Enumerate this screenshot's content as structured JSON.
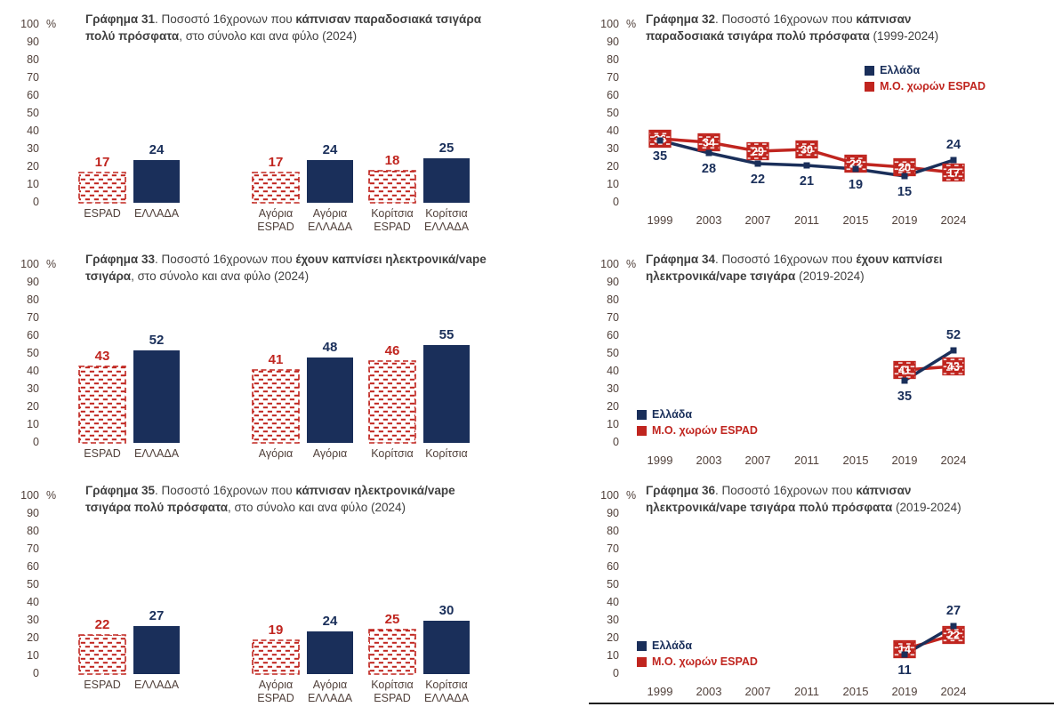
{
  "palette": {
    "navy": "#1a2f5a",
    "red": "#c0251f",
    "axis_label": "#51413b",
    "title_text": "#404040"
  },
  "axis": {
    "unit": "%",
    "y_ticks": [
      0,
      10,
      20,
      30,
      40,
      50,
      60,
      70,
      80,
      90,
      100
    ],
    "y_max": 100
  },
  "chart_data": [
    {
      "id": "31",
      "type": "bar",
      "title_segments": [
        {
          "text": "Γράφημα 31",
          "bold": true
        },
        {
          "text": ". Ποσοστό 16χρονων που ",
          "bold": false
        },
        {
          "text": "κάπνισαν παραδοσιακά τσιγάρα πολύ πρόσφατα",
          "bold": true
        },
        {
          "text": ", στο σύνολο και ανα φύλο (2024)",
          "bold": false
        }
      ],
      "categories": [
        [
          "ESPAD"
        ],
        [
          "ΕΛΛΑΔΑ"
        ],
        [
          "Αγόρια",
          "ESPAD"
        ],
        [
          "Αγόρια",
          "ΕΛΛΑΔΑ"
        ],
        [
          "Κορίτσια",
          "ESPAD"
        ],
        [
          "Κορίτσια",
          "ΕΛΛΑΔΑ"
        ]
      ],
      "values": [
        17,
        24,
        17,
        24,
        18,
        25
      ],
      "bar_styles": [
        "espad",
        "greece",
        "espad",
        "greece",
        "espad",
        "greece"
      ],
      "ylim": [
        0,
        100
      ],
      "grid": false
    },
    {
      "id": "32",
      "type": "line",
      "title_segments": [
        {
          "text": "Γράφημα 32",
          "bold": true
        },
        {
          "text": ". Ποσοστό 16χρονων που ",
          "bold": false
        },
        {
          "text": "κάπνισαν παραδοσιακά τσιγάρα πολύ πρόσφατα",
          "bold": true
        },
        {
          "text": " (1999-2024)",
          "bold": false
        }
      ],
      "x_labels": [
        "1999",
        "2003",
        "2007",
        "2011",
        "2015",
        "2019",
        "2024"
      ],
      "series": [
        {
          "name": "Ελλάδα",
          "color": "navy",
          "x": [
            "1999",
            "2003",
            "2007",
            "2011",
            "2015",
            "2019",
            "2024"
          ],
          "values": [
            35,
            28,
            22,
            21,
            19,
            15,
            24
          ]
        },
        {
          "name": "Μ.Ο. χωρών ESPAD",
          "color": "red",
          "x": [
            "1999",
            "2003",
            "2007",
            "2011",
            "2015",
            "2019",
            "2024"
          ],
          "values": [
            36,
            34,
            29,
            30,
            22,
            20,
            17
          ]
        }
      ],
      "legend_position": "top-right",
      "ylim": [
        0,
        100
      ],
      "grid": false
    },
    {
      "id": "33",
      "type": "bar",
      "title_segments": [
        {
          "text": "Γράφημα 33",
          "bold": true
        },
        {
          "text": ". Ποσοστό 16χρονων που ",
          "bold": false
        },
        {
          "text": "έχουν καπνίσει ηλεκτρονικά/vape τσιγάρα",
          "bold": true
        },
        {
          "text": ", στο σύνολο και ανα φύλο (2024)",
          "bold": false
        }
      ],
      "categories": [
        [
          "ESPAD"
        ],
        [
          "ΕΛΛΑΔΑ"
        ],
        [
          "Αγόρια"
        ],
        [
          "Αγόρια"
        ],
        [
          "Κορίτσια"
        ],
        [
          "Κορίτσια"
        ]
      ],
      "values": [
        43,
        52,
        41,
        48,
        46,
        55
      ],
      "bar_styles": [
        "espad",
        "greece",
        "espad",
        "greece",
        "espad",
        "greece"
      ],
      "ylim": [
        0,
        100
      ],
      "grid": false
    },
    {
      "id": "34",
      "type": "line",
      "title_segments": [
        {
          "text": "Γράφημα 34",
          "bold": true
        },
        {
          "text": ". Ποσοστό 16χρονων που ",
          "bold": false
        },
        {
          "text": "έχουν καπνίσει ηλεκτρονικά/vape τσιγάρα",
          "bold": true
        },
        {
          "text": " (2019-2024)",
          "bold": false
        }
      ],
      "x_labels": [
        "1999",
        "2003",
        "2007",
        "2011",
        "2015",
        "2019",
        "2024"
      ],
      "series": [
        {
          "name": "Ελλάδα",
          "color": "navy",
          "x": [
            "2019",
            "2024"
          ],
          "values": [
            35,
            52
          ]
        },
        {
          "name": "Μ.Ο. χωρών ESPAD",
          "color": "red",
          "x": [
            "2019",
            "2024"
          ],
          "values": [
            41,
            43
          ]
        }
      ],
      "legend_position": "bottom-left",
      "ylim": [
        0,
        100
      ],
      "grid": false
    },
    {
      "id": "35",
      "type": "bar",
      "title_segments": [
        {
          "text": "Γράφημα 35",
          "bold": true
        },
        {
          "text": ". Ποσοστό 16χρονων που ",
          "bold": false
        },
        {
          "text": "κάπνισαν ηλεκτρονικά/vape τσιγάρα πολύ πρόσφατα",
          "bold": true
        },
        {
          "text": ", στο σύνολο και ανα φύλο (2024)",
          "bold": false
        }
      ],
      "categories": [
        [
          "ESPAD"
        ],
        [
          "ΕΛΛΑΔΑ"
        ],
        [
          "Αγόρια",
          "ESPAD"
        ],
        [
          "Αγόρια",
          "ΕΛΛΑΔΑ"
        ],
        [
          "Κορίτσια",
          "ESPAD"
        ],
        [
          "Κορίτσια",
          "ΕΛΛΑΔΑ"
        ]
      ],
      "values": [
        22,
        27,
        19,
        24,
        25,
        30
      ],
      "bar_styles": [
        "espad",
        "greece",
        "espad",
        "greece",
        "espad",
        "greece"
      ],
      "ylim": [
        0,
        100
      ],
      "grid": false
    },
    {
      "id": "36",
      "type": "line",
      "title_segments": [
        {
          "text": "Γράφημα 36",
          "bold": true
        },
        {
          "text": ". Ποσοστό 16χρονων που ",
          "bold": false
        },
        {
          "text": "κάπνισαν ηλεκτρονικά/vape τσιγάρα πολύ πρόσφατα",
          "bold": true
        },
        {
          "text": " (2019-2024)",
          "bold": false
        }
      ],
      "x_labels": [
        "1999",
        "2003",
        "2007",
        "2011",
        "2015",
        "2019",
        "2024"
      ],
      "series": [
        {
          "name": "Ελλάδα",
          "color": "navy",
          "x": [
            "2019",
            "2024"
          ],
          "values": [
            11,
            27
          ]
        },
        {
          "name": "Μ.Ο. χωρών ESPAD",
          "color": "red",
          "x": [
            "2019",
            "2024"
          ],
          "values": [
            14,
            22
          ]
        }
      ],
      "legend_position": "bottom-left",
      "ylim": [
        0,
        100
      ],
      "grid": false
    }
  ]
}
